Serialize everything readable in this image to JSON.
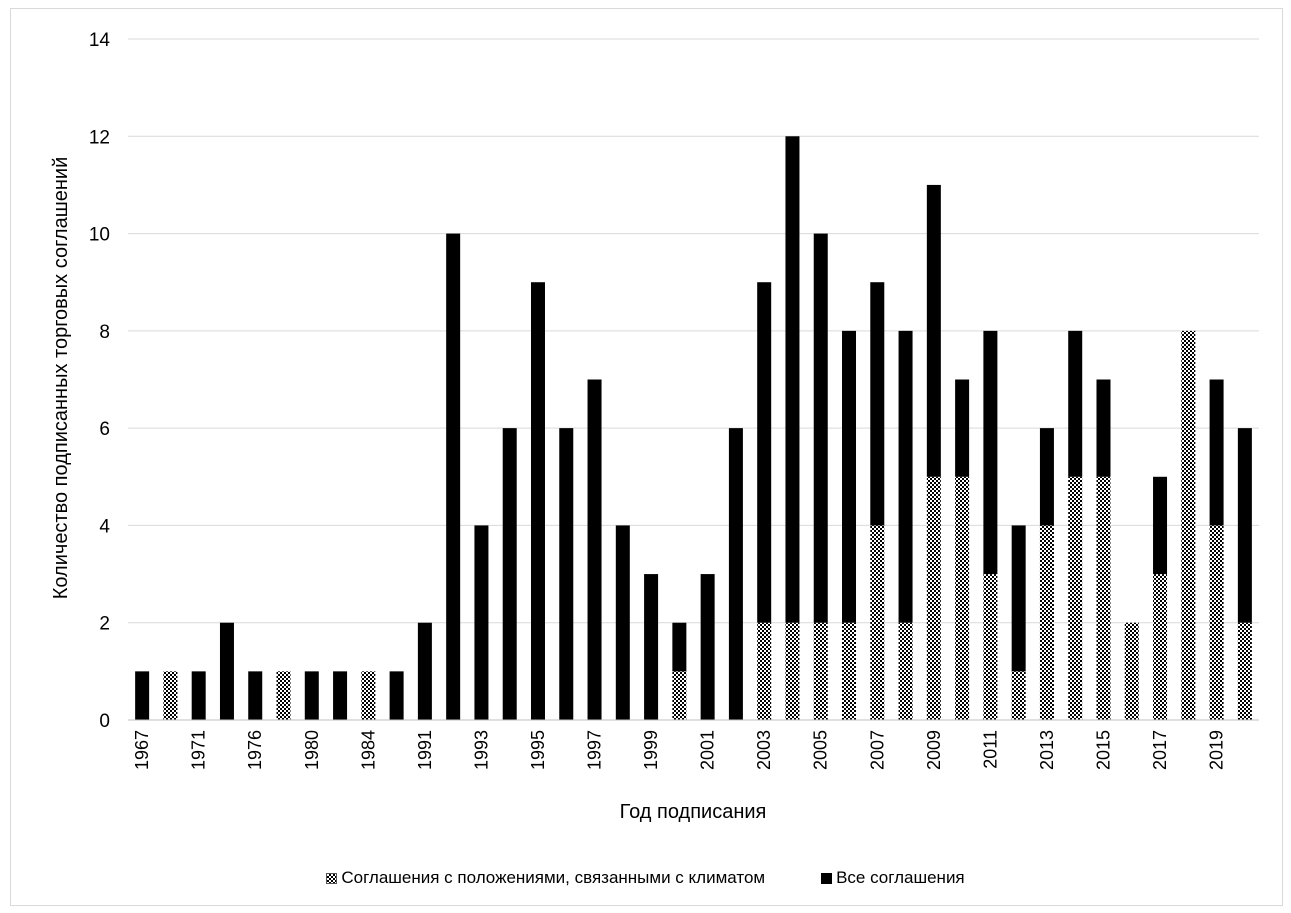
{
  "chart_data": {
    "type": "bar",
    "stacked": true,
    "title": "",
    "xlabel": "Год подписания",
    "ylabel": "Количество подписанных торговых соглашений",
    "ylim": [
      0,
      14
    ],
    "yticks": [
      0,
      2,
      4,
      6,
      8,
      10,
      12,
      14
    ],
    "grid": true,
    "legend_position": "bottom",
    "categories": [
      "1967",
      "1969",
      "1971",
      "1973",
      "1976",
      "1978",
      "1980",
      "1982",
      "1984",
      "1986",
      "1991",
      "1992",
      "1993",
      "1994",
      "1995",
      "1996",
      "1997",
      "1998",
      "1999",
      "2000",
      "2001",
      "2002",
      "2003",
      "2004",
      "2005",
      "2006",
      "2007",
      "2008",
      "2009",
      "2010",
      "2011",
      "2012",
      "2013",
      "2014",
      "2015",
      "2016",
      "2017",
      "2018",
      "2019",
      "2020"
    ],
    "tick_labels": [
      "1967",
      "",
      "1971",
      "",
      "1976",
      "",
      "1980",
      "",
      "1984",
      "",
      "1991",
      "",
      "1993",
      "",
      "1995",
      "",
      "1997",
      "",
      "1999",
      "",
      "2001",
      "",
      "2003",
      "",
      "2005",
      "",
      "2007",
      "",
      "2009",
      "",
      "2011",
      "",
      "2013",
      "",
      "2015",
      "",
      "2017",
      "",
      "2019",
      ""
    ],
    "series": [
      {
        "name": "Соглашения с положениями, связанными с климатом",
        "color": "#b0b0b0",
        "pattern": "checker",
        "values": [
          0,
          1,
          0,
          0,
          0,
          1,
          0,
          0,
          1,
          0,
          0,
          0,
          0,
          0,
          0,
          0,
          0,
          0,
          0,
          1,
          0,
          0,
          2,
          2,
          2,
          2,
          4,
          2,
          5,
          5,
          3,
          1,
          4,
          5,
          5,
          2,
          3,
          8,
          4,
          2
        ]
      },
      {
        "name": "Все соглашения",
        "color": "#000000",
        "pattern": "solid",
        "values": [
          1,
          0,
          1,
          2,
          1,
          0,
          1,
          1,
          0,
          1,
          2,
          10,
          4,
          6,
          9,
          6,
          7,
          4,
          3,
          1,
          3,
          6,
          7,
          10,
          8,
          6,
          5,
          6,
          6,
          2,
          5,
          3,
          2,
          3,
          2,
          0,
          2,
          0,
          3,
          4
        ]
      }
    ]
  }
}
